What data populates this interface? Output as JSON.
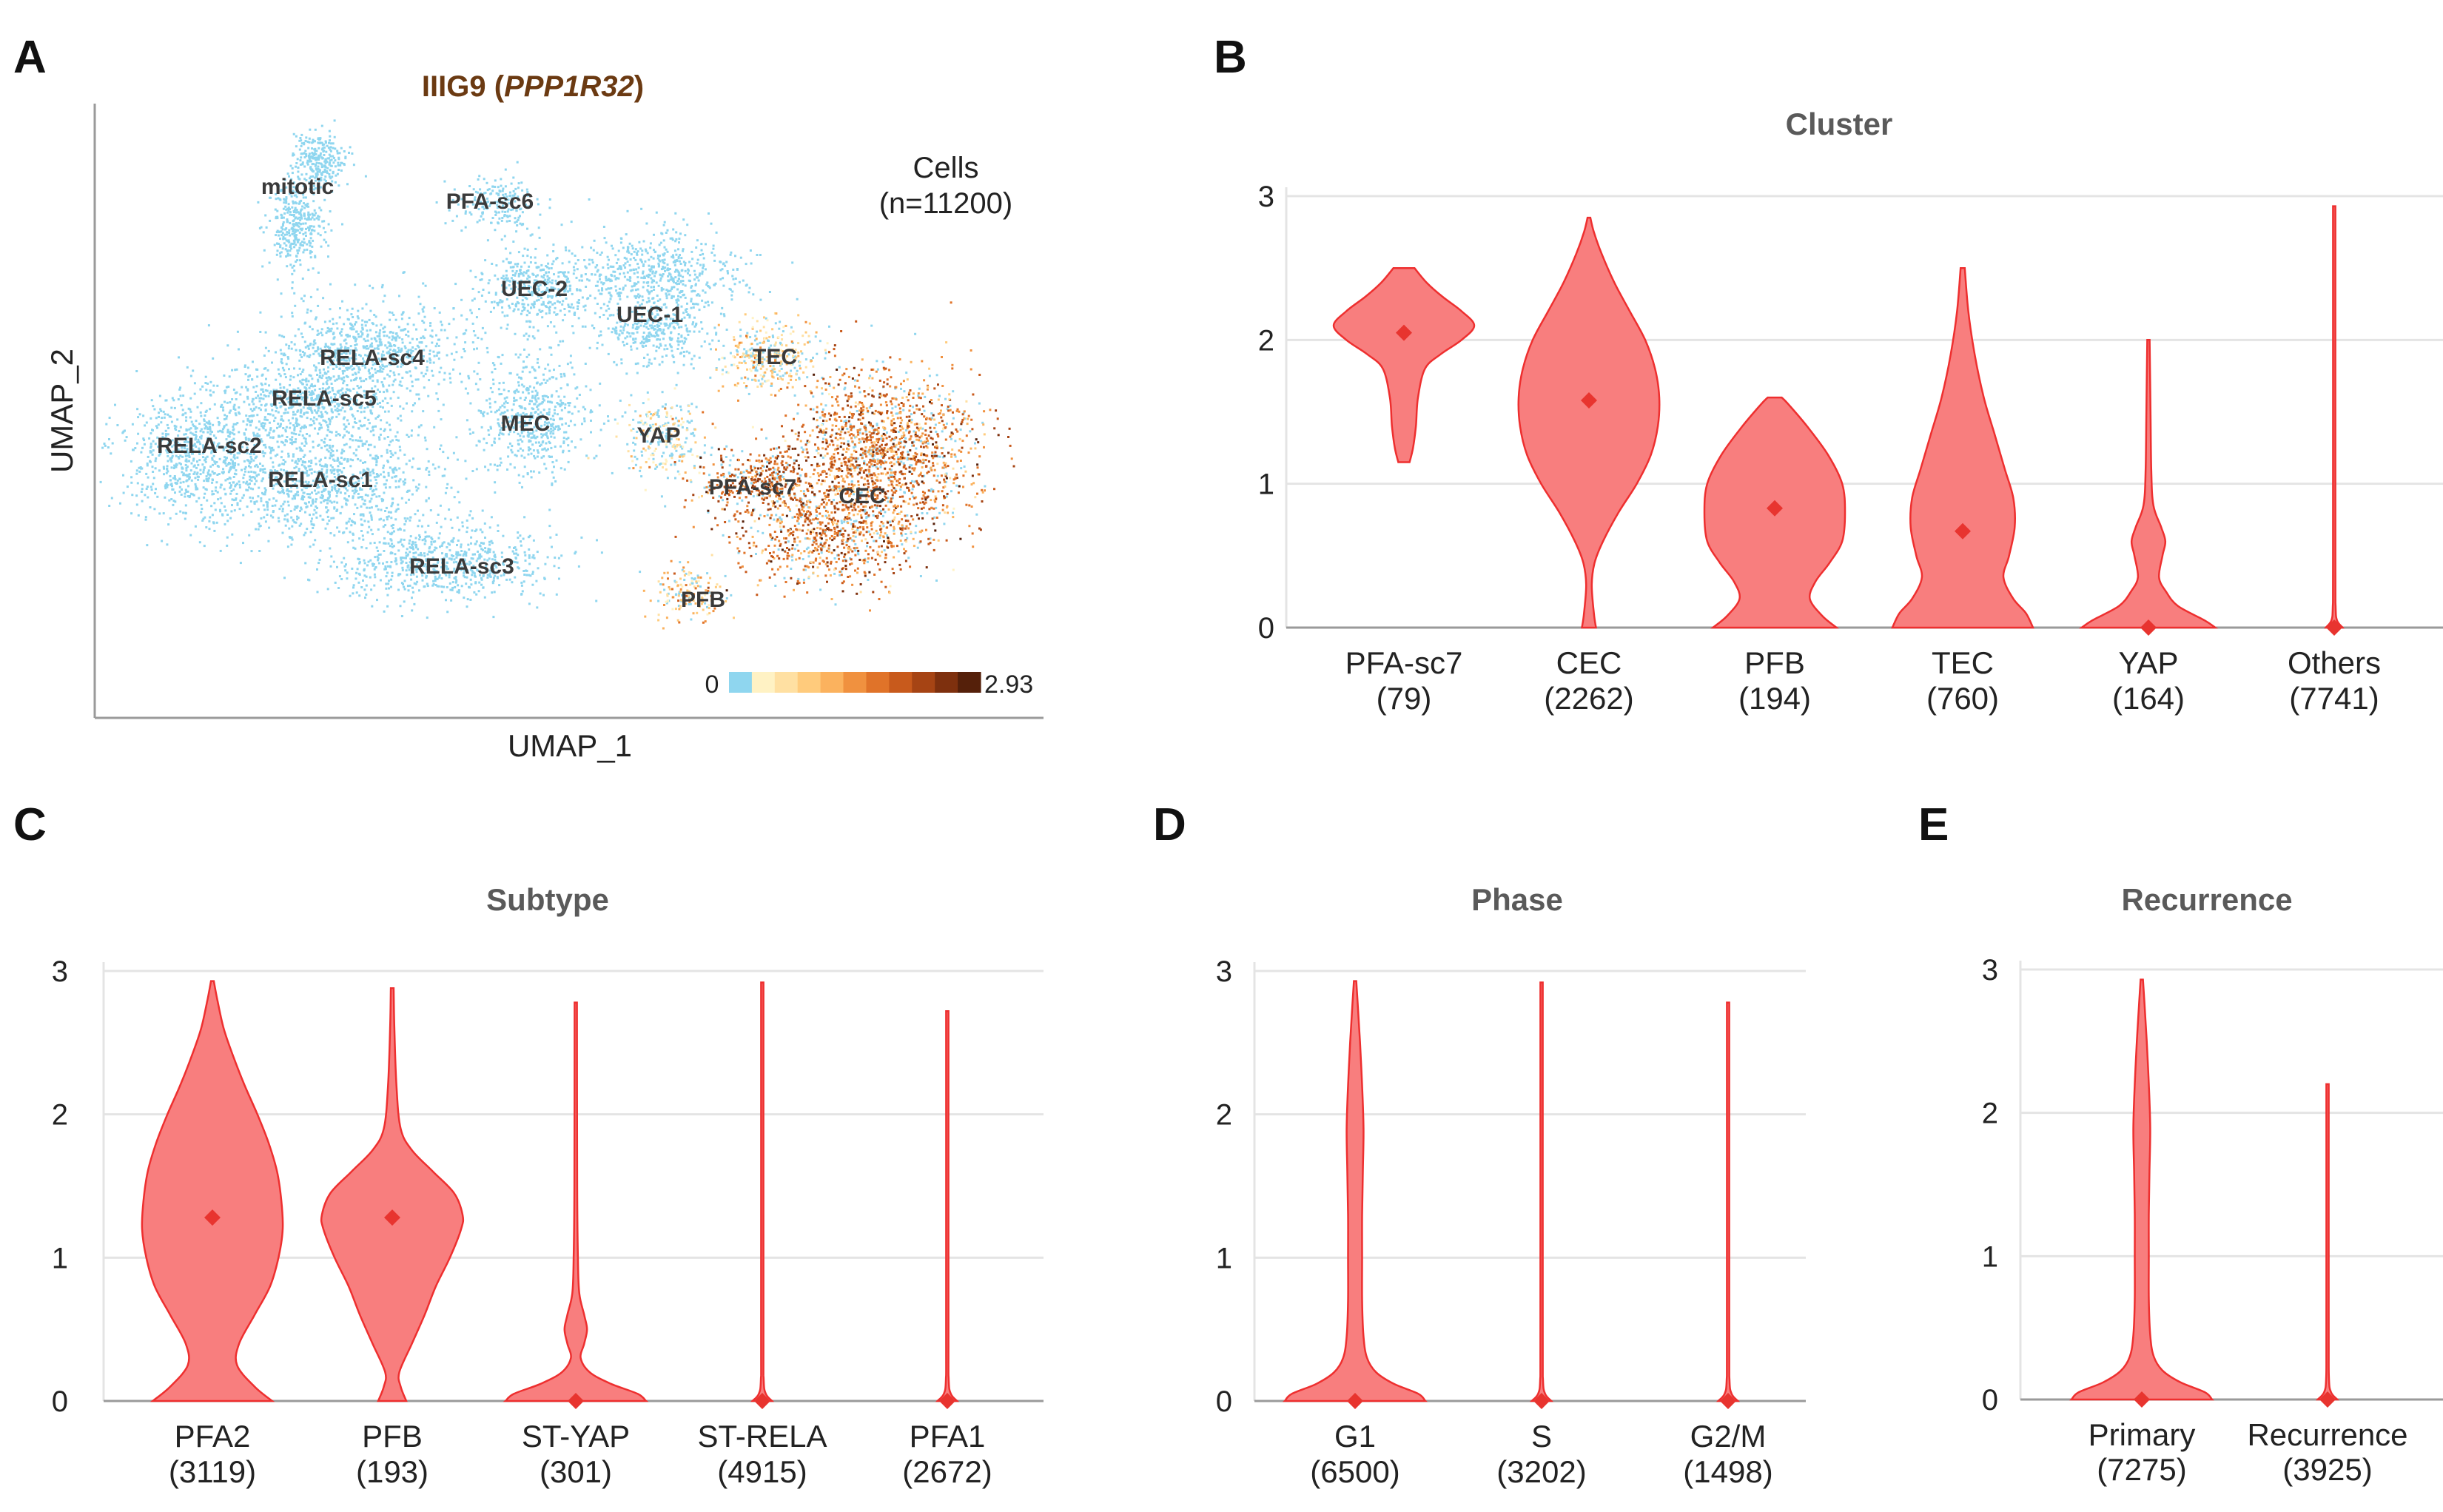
{
  "panels": {
    "A": {
      "letter": "A",
      "title_plain": "IIIG9 (",
      "title_italic": "PPP1R32",
      "title_close": ")",
      "xlabel": "UMAP_1",
      "ylabel": "UMAP_2",
      "cells_label": "Cells",
      "cells_count": "(n=11200)",
      "colorbar": {
        "min_label": "0",
        "max_label": "2.93",
        "colors": [
          "#8fd6ef",
          "#fff2c4",
          "#ffe0a2",
          "#ffcb7c",
          "#fbb25e",
          "#f0913f",
          "#e07329",
          "#c85a1c",
          "#a64414",
          "#7e300e",
          "#55200a"
        ]
      },
      "clusters": [
        {
          "name": "mitotic",
          "expr": 0.0
        },
        {
          "name": "PFA-sc6",
          "expr": 0.0
        },
        {
          "name": "UEC-2",
          "expr": 0.0
        },
        {
          "name": "UEC-1",
          "expr": 0.0
        },
        {
          "name": "RELA-sc4",
          "expr": 0.0
        },
        {
          "name": "RELA-sc5",
          "expr": 0.0
        },
        {
          "name": "TEC",
          "expr": 0.45
        },
        {
          "name": "MEC",
          "expr": 0.0
        },
        {
          "name": "YAP",
          "expr": 0.1
        },
        {
          "name": "RELA-sc2",
          "expr": 0.0
        },
        {
          "name": "RELA-sc1",
          "expr": 0.0
        },
        {
          "name": "PFA-sc7",
          "expr": 1.9
        },
        {
          "name": "CEC",
          "expr": 1.6
        },
        {
          "name": "RELA-sc3",
          "expr": 0.0
        },
        {
          "name": "PFB",
          "expr": 0.8
        }
      ]
    },
    "B": {
      "letter": "B"
    },
    "C": {
      "letter": "C"
    },
    "D": {
      "letter": "D"
    },
    "E": {
      "letter": "E"
    }
  },
  "chart_data": [
    {
      "panel": "B",
      "type": "violin",
      "title": "Cluster",
      "ylim": [
        0,
        3
      ],
      "yticks": [
        "0",
        "1",
        "2",
        "3"
      ],
      "grid": true,
      "color": "#f87e7e",
      "categories": [
        {
          "name": "PFA-sc7",
          "n": "(79)",
          "median": 2.05,
          "max": 2.5,
          "min": 1.15,
          "profile": [
            [
              1.15,
              0.08
            ],
            [
              1.25,
              0.13
            ],
            [
              1.4,
              0.17
            ],
            [
              1.6,
              0.2
            ],
            [
              1.8,
              0.3
            ],
            [
              1.9,
              0.52
            ],
            [
              2.0,
              0.82
            ],
            [
              2.1,
              1.0
            ],
            [
              2.2,
              0.82
            ],
            [
              2.3,
              0.55
            ],
            [
              2.4,
              0.32
            ],
            [
              2.5,
              0.15
            ]
          ]
        },
        {
          "name": "CEC",
          "n": "(2262)",
          "median": 1.58,
          "max": 2.85,
          "min": 0,
          "profile": [
            [
              0.0,
              0.1
            ],
            [
              0.1,
              0.07
            ],
            [
              0.3,
              0.04
            ],
            [
              0.45,
              0.08
            ],
            [
              0.6,
              0.2
            ],
            [
              0.8,
              0.42
            ],
            [
              1.0,
              0.68
            ],
            [
              1.2,
              0.88
            ],
            [
              1.4,
              0.98
            ],
            [
              1.6,
              1.0
            ],
            [
              1.8,
              0.94
            ],
            [
              2.0,
              0.8
            ],
            [
              2.2,
              0.58
            ],
            [
              2.4,
              0.36
            ],
            [
              2.6,
              0.18
            ],
            [
              2.75,
              0.07
            ],
            [
              2.85,
              0.02
            ]
          ]
        },
        {
          "name": "PFB",
          "n": "(194)",
          "median": 0.83,
          "max": 1.6,
          "min": 0,
          "profile": [
            [
              0.0,
              0.88
            ],
            [
              0.08,
              0.68
            ],
            [
              0.2,
              0.5
            ],
            [
              0.32,
              0.58
            ],
            [
              0.45,
              0.78
            ],
            [
              0.6,
              0.96
            ],
            [
              0.8,
              1.0
            ],
            [
              1.0,
              0.96
            ],
            [
              1.2,
              0.76
            ],
            [
              1.4,
              0.46
            ],
            [
              1.55,
              0.2
            ],
            [
              1.6,
              0.1
            ]
          ]
        },
        {
          "name": "TEC",
          "n": "(760)",
          "median": 0.67,
          "max": 2.5,
          "min": 0,
          "profile": [
            [
              0.0,
              1.0
            ],
            [
              0.1,
              0.9
            ],
            [
              0.2,
              0.72
            ],
            [
              0.35,
              0.58
            ],
            [
              0.5,
              0.66
            ],
            [
              0.7,
              0.74
            ],
            [
              0.9,
              0.72
            ],
            [
              1.1,
              0.6
            ],
            [
              1.35,
              0.45
            ],
            [
              1.6,
              0.3
            ],
            [
              1.9,
              0.17
            ],
            [
              2.2,
              0.08
            ],
            [
              2.5,
              0.03
            ]
          ]
        },
        {
          "name": "YAP",
          "n": "(164)",
          "median": 0.0,
          "max": 2.0,
          "min": 0,
          "profile": [
            [
              0.0,
              0.95
            ],
            [
              0.05,
              0.8
            ],
            [
              0.15,
              0.42
            ],
            [
              0.25,
              0.25
            ],
            [
              0.35,
              0.15
            ],
            [
              0.5,
              0.2
            ],
            [
              0.6,
              0.24
            ],
            [
              0.7,
              0.18
            ],
            [
              0.85,
              0.07
            ],
            [
              1.1,
              0.04
            ],
            [
              1.5,
              0.03
            ],
            [
              2.0,
              0.015
            ]
          ]
        },
        {
          "name": "Others",
          "n": "(7741)",
          "median": 0.0,
          "max": 2.93,
          "min": 0,
          "profile": [
            [
              0.0,
              0.12
            ],
            [
              0.05,
              0.04
            ],
            [
              0.15,
              0.02
            ],
            [
              0.5,
              0.015
            ],
            [
              2.93,
              0.01
            ]
          ]
        }
      ]
    },
    {
      "panel": "C",
      "type": "violin",
      "title": "Subtype",
      "ylim": [
        0,
        3
      ],
      "yticks": [
        "0",
        "1",
        "2",
        "3"
      ],
      "grid": true,
      "color": "#f87e7e",
      "categories": [
        {
          "name": "PFA2",
          "n": "(3119)",
          "median": 1.28,
          "max": 2.93,
          "min": 0,
          "profile": [
            [
              0.0,
              0.85
            ],
            [
              0.1,
              0.6
            ],
            [
              0.25,
              0.35
            ],
            [
              0.4,
              0.38
            ],
            [
              0.6,
              0.6
            ],
            [
              0.8,
              0.82
            ],
            [
              1.0,
              0.94
            ],
            [
              1.2,
              1.0
            ],
            [
              1.4,
              0.98
            ],
            [
              1.6,
              0.92
            ],
            [
              1.8,
              0.8
            ],
            [
              2.0,
              0.64
            ],
            [
              2.2,
              0.46
            ],
            [
              2.4,
              0.3
            ],
            [
              2.6,
              0.16
            ],
            [
              2.8,
              0.07
            ],
            [
              2.93,
              0.02
            ]
          ]
        },
        {
          "name": "PFB",
          "n": "(193)",
          "median": 1.28,
          "max": 2.88,
          "min": 0,
          "profile": [
            [
              0.0,
              0.2
            ],
            [
              0.1,
              0.12
            ],
            [
              0.2,
              0.1
            ],
            [
              0.4,
              0.28
            ],
            [
              0.6,
              0.46
            ],
            [
              0.8,
              0.62
            ],
            [
              1.0,
              0.82
            ],
            [
              1.2,
              0.98
            ],
            [
              1.3,
              1.0
            ],
            [
              1.45,
              0.88
            ],
            [
              1.6,
              0.58
            ],
            [
              1.75,
              0.28
            ],
            [
              1.9,
              0.12
            ],
            [
              2.2,
              0.06
            ],
            [
              2.6,
              0.03
            ],
            [
              2.88,
              0.02
            ]
          ]
        },
        {
          "name": "ST-YAP",
          "n": "(301)",
          "median": 0.0,
          "max": 2.78,
          "min": 0,
          "profile": [
            [
              0.0,
              1.0
            ],
            [
              0.05,
              0.88
            ],
            [
              0.12,
              0.5
            ],
            [
              0.2,
              0.2
            ],
            [
              0.3,
              0.07
            ],
            [
              0.4,
              0.12
            ],
            [
              0.5,
              0.16
            ],
            [
              0.6,
              0.12
            ],
            [
              0.75,
              0.05
            ],
            [
              1.0,
              0.03
            ],
            [
              1.5,
              0.02
            ],
            [
              2.78,
              0.01
            ]
          ]
        },
        {
          "name": "ST-RELA",
          "n": "(4915)",
          "median": 0.0,
          "max": 2.92,
          "min": 0,
          "profile": [
            [
              0.0,
              0.14
            ],
            [
              0.05,
              0.05
            ],
            [
              0.15,
              0.02
            ],
            [
              0.5,
              0.015
            ],
            [
              2.92,
              0.01
            ]
          ]
        },
        {
          "name": "PFA1",
          "n": "(2672)",
          "median": 0.0,
          "max": 2.72,
          "min": 0,
          "profile": [
            [
              0.0,
              0.14
            ],
            [
              0.05,
              0.05
            ],
            [
              0.15,
              0.02
            ],
            [
              0.5,
              0.015
            ],
            [
              2.72,
              0.01
            ]
          ]
        }
      ]
    },
    {
      "panel": "D",
      "type": "violin",
      "title": "Phase",
      "ylim": [
        0,
        3
      ],
      "yticks": [
        "0",
        "1",
        "2",
        "3"
      ],
      "grid": true,
      "color": "#f87e7e",
      "categories": [
        {
          "name": "G1",
          "n": "(6500)",
          "median": 0.0,
          "max": 2.93,
          "min": 0,
          "profile": [
            [
              0.0,
              1.0
            ],
            [
              0.05,
              0.9
            ],
            [
              0.12,
              0.55
            ],
            [
              0.2,
              0.3
            ],
            [
              0.3,
              0.17
            ],
            [
              0.45,
              0.12
            ],
            [
              0.7,
              0.1
            ],
            [
              1.0,
              0.1
            ],
            [
              1.3,
              0.1
            ],
            [
              1.6,
              0.11
            ],
            [
              1.9,
              0.12
            ],
            [
              2.2,
              0.1
            ],
            [
              2.5,
              0.07
            ],
            [
              2.75,
              0.04
            ],
            [
              2.93,
              0.01
            ]
          ]
        },
        {
          "name": "S",
          "n": "(3202)",
          "median": 0.0,
          "max": 2.92,
          "min": 0,
          "profile": [
            [
              0.0,
              0.14
            ],
            [
              0.05,
              0.05
            ],
            [
              0.15,
              0.02
            ],
            [
              0.5,
              0.015
            ],
            [
              2.92,
              0.01
            ]
          ]
        },
        {
          "name": "G2/M",
          "n": "(1498)",
          "median": 0.0,
          "max": 2.78,
          "min": 0,
          "profile": [
            [
              0.0,
              0.14
            ],
            [
              0.05,
              0.05
            ],
            [
              0.15,
              0.02
            ],
            [
              0.5,
              0.015
            ],
            [
              2.78,
              0.01
            ]
          ]
        }
      ]
    },
    {
      "panel": "E",
      "type": "violin",
      "title": "Recurrence",
      "ylim": [
        0,
        3
      ],
      "yticks": [
        "0",
        "1",
        "2",
        "3"
      ],
      "grid": true,
      "color": "#f87e7e",
      "categories": [
        {
          "name": "Primary",
          "n": "(7275)",
          "median": 0.0,
          "max": 2.93,
          "min": 0,
          "profile": [
            [
              0.0,
              1.0
            ],
            [
              0.05,
              0.9
            ],
            [
              0.12,
              0.55
            ],
            [
              0.2,
              0.3
            ],
            [
              0.3,
              0.17
            ],
            [
              0.45,
              0.12
            ],
            [
              0.7,
              0.1
            ],
            [
              1.0,
              0.1
            ],
            [
              1.3,
              0.1
            ],
            [
              1.6,
              0.11
            ],
            [
              1.9,
              0.12
            ],
            [
              2.2,
              0.1
            ],
            [
              2.5,
              0.07
            ],
            [
              2.75,
              0.04
            ],
            [
              2.93,
              0.01
            ]
          ]
        },
        {
          "name": "Recurrence",
          "n": "(3925)",
          "median": 0.0,
          "max": 2.2,
          "min": 0,
          "profile": [
            [
              0.0,
              0.14
            ],
            [
              0.05,
              0.05
            ],
            [
              0.15,
              0.02
            ],
            [
              0.5,
              0.015
            ],
            [
              2.2,
              0.01
            ]
          ]
        }
      ]
    }
  ]
}
